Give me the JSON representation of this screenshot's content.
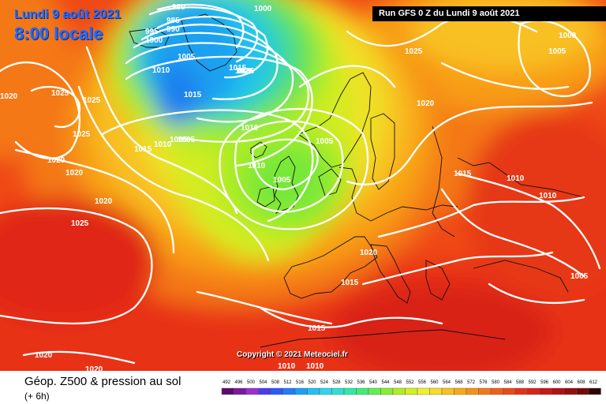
{
  "header": {
    "date": "Lundi 9 août 2021",
    "time": "8:00 locale",
    "run": "Run GFS 0 Z du Lundi 9 août 2021"
  },
  "copyright": "Copyright © 2021 Meteociel.fr",
  "legend": {
    "title": "Géop. Z500 & pression au sol",
    "subtitle": "(+ 6h)",
    "scale_values": [
      "492",
      "496",
      "500",
      "504",
      "508",
      "512",
      "516",
      "520",
      "524",
      "528",
      "532",
      "536",
      "540",
      "544",
      "548",
      "552",
      "556",
      "560",
      "564",
      "568",
      "572",
      "576",
      "580",
      "584",
      "588",
      "592",
      "596",
      "600",
      "604",
      "608",
      "612"
    ],
    "scale_colors": [
      "#5a0a6e",
      "#7a1aa0",
      "#9a2fd0",
      "#4a3af0",
      "#2a5af8",
      "#1e7ef5",
      "#1aa0f5",
      "#20c0f5",
      "#30d5f0",
      "#2ee0d0",
      "#30e8a8",
      "#40ec78",
      "#60ee50",
      "#88ee30",
      "#b0ef20",
      "#d4f020",
      "#eef030",
      "#f8dc28",
      "#f8c020",
      "#f8a818",
      "#f89018",
      "#f47818",
      "#f06018",
      "#ec4818",
      "#e63018",
      "#d82418",
      "#c81818",
      "#b01010",
      "#980c0c",
      "#780808",
      "#300404"
    ]
  },
  "isobars": [
    {
      "label": "980"
    },
    {
      "label": "985"
    },
    {
      "label": "990"
    },
    {
      "label": "995"
    },
    {
      "label": "1000"
    },
    {
      "label": "1000"
    },
    {
      "label": "1005"
    },
    {
      "label": "1010"
    },
    {
      "label": "1015"
    },
    {
      "label": "1020"
    },
    {
      "label": "1025"
    },
    {
      "label": "1025"
    },
    {
      "label": "1020"
    },
    {
      "label": "1025"
    },
    {
      "label": "1020"
    },
    {
      "label": "1020"
    },
    {
      "label": "1025"
    },
    {
      "label": "1015"
    },
    {
      "label": "1010"
    },
    {
      "label": "1005"
    },
    {
      "label": "1015"
    },
    {
      "label": "1025"
    },
    {
      "label": "1025"
    },
    {
      "label": "1010"
    },
    {
      "label": "1005"
    },
    {
      "label": "1010"
    },
    {
      "label": "1005"
    },
    {
      "label": "1005"
    },
    {
      "label": "1020"
    },
    {
      "label": "1015"
    },
    {
      "label": "1015"
    },
    {
      "label": "1020"
    },
    {
      "label": "1010"
    },
    {
      "label": "1010"
    },
    {
      "label": "1025"
    },
    {
      "label": "1020"
    },
    {
      "label": "1000"
    },
    {
      "label": "1005"
    },
    {
      "label": "1015"
    },
    {
      "label": "1010"
    },
    {
      "label": "1010"
    },
    {
      "label": "1005"
    },
    {
      "label": "1020"
    },
    {
      "label": "1020"
    }
  ]
}
